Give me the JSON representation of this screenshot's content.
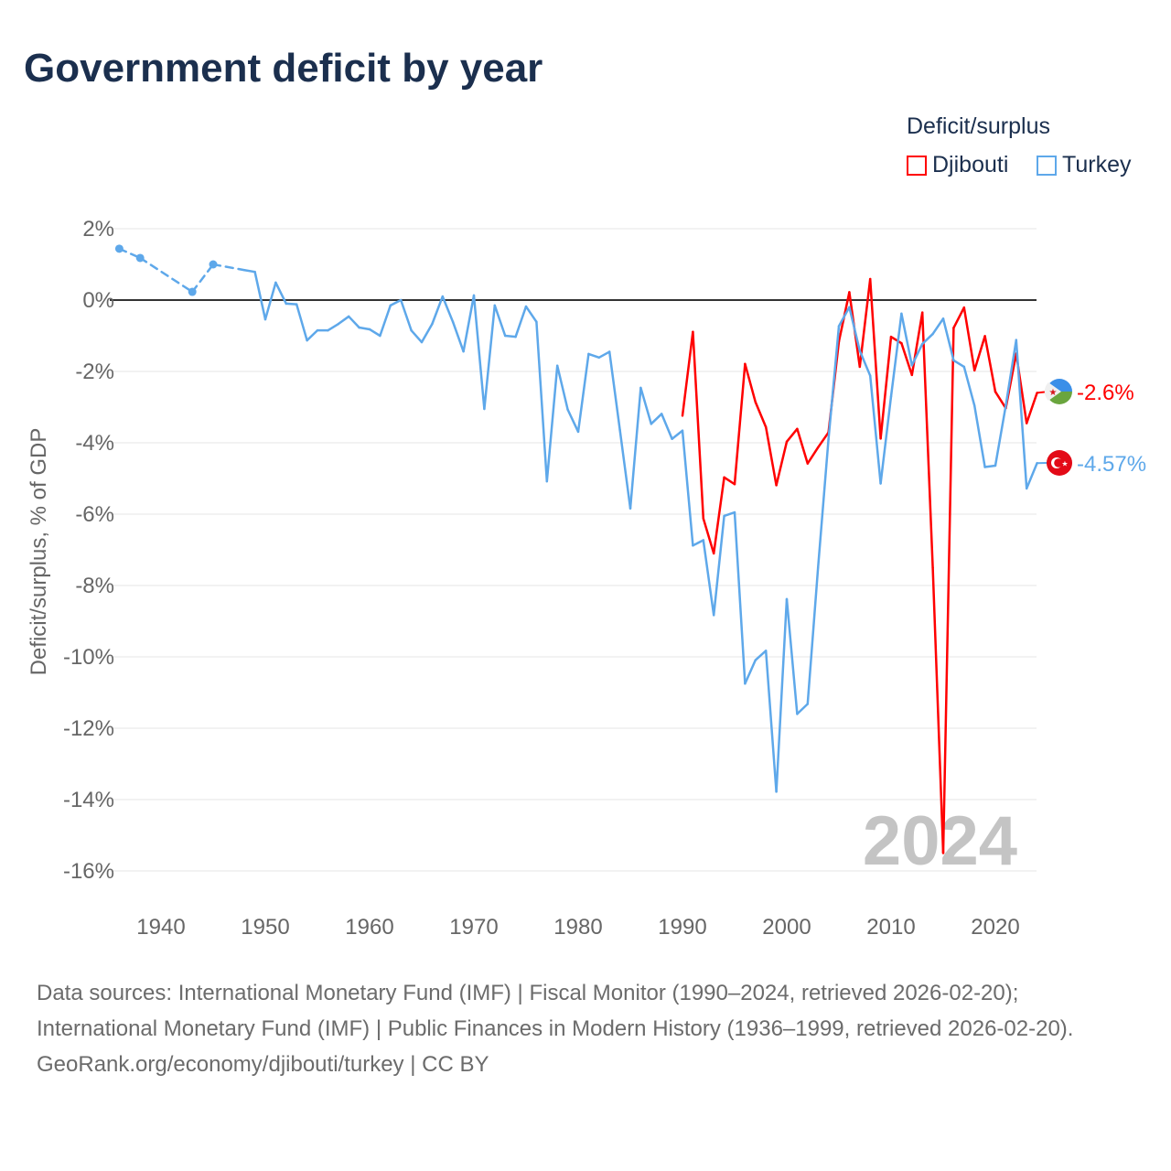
{
  "title": "Government deficit by year",
  "legend": {
    "title": "Deficit/surplus",
    "items": [
      "Djibouti",
      "Turkey"
    ]
  },
  "footer": {
    "line1": "Data sources: International Monetary Fund (IMF) | Fiscal Monitor (1990–2024, retrieved 2026-02-20); International Monetary Fund (IMF) | Public Finances in Modern History (1936–1999, retrieved 2026-02-20).",
    "line2": "GeoRank.org/economy/djibouti/turkey | CC BY"
  },
  "chart_data": {
    "type": "line",
    "title": "Government deficit by year",
    "ylabel": "Deficit/surplus, % of GDP",
    "xlabel": "",
    "ylim": [
      -17,
      2.5
    ],
    "xlim": [
      1935.5,
      2024.5
    ],
    "yticks": [
      2,
      0,
      -2,
      -4,
      -6,
      -8,
      -10,
      -12,
      -14,
      -16
    ],
    "ytick_labels": [
      "2%",
      "0%",
      "-2%",
      "-4%",
      "-6%",
      "-8%",
      "-10%",
      "-12%",
      "-14%",
      "-16%"
    ],
    "xticks": [
      1940,
      1950,
      1960,
      1970,
      1980,
      1990,
      2000,
      2010,
      2020
    ],
    "xtick_labels": [
      "1940",
      "1950",
      "1960",
      "1970",
      "1980",
      "1990",
      "2000",
      "2010",
      "2020"
    ],
    "watermark": "2024",
    "grid": true,
    "legend_position": "top-right",
    "series": [
      {
        "name": "Djibouti",
        "color": "#ff0000",
        "end_label": "-2.6%",
        "x": [
          1990,
          1991,
          1992,
          1993,
          1994,
          1995,
          1996,
          1997,
          1998,
          1999,
          2000,
          2001,
          2002,
          2003,
          2004,
          2005,
          2006,
          2007,
          2008,
          2009,
          2010,
          2011,
          2012,
          2013,
          2014,
          2015,
          2016,
          2017,
          2018,
          2019,
          2020,
          2021,
          2022,
          2023,
          2024
        ],
        "y": [
          -3.24,
          -0.89,
          -6.12,
          -7.1,
          -4.97,
          -5.16,
          -1.79,
          -2.86,
          -3.56,
          -5.19,
          -3.97,
          -3.61,
          -4.58,
          -4.13,
          -3.71,
          -1.16,
          0.22,
          -1.87,
          0.59,
          -3.88,
          -1.03,
          -1.21,
          -2.1,
          -0.35,
          -7.5,
          -15.5,
          -0.78,
          -0.21,
          -1.97,
          -1.01,
          -2.57,
          -3.03,
          -1.5,
          -3.45,
          -2.6
        ]
      },
      {
        "name": "Turkey",
        "color": "#5ea8ea",
        "end_label": "-4.57%",
        "x": [
          1936,
          1938,
          1943,
          1945,
          1948,
          1949,
          1950,
          1951,
          1952,
          1953,
          1954,
          1955,
          1956,
          1957,
          1958,
          1959,
          1960,
          1961,
          1962,
          1963,
          1964,
          1965,
          1966,
          1967,
          1968,
          1969,
          1970,
          1971,
          1972,
          1973,
          1974,
          1975,
          1976,
          1977,
          1978,
          1979,
          1980,
          1981,
          1982,
          1983,
          1984,
          1985,
          1986,
          1987,
          1988,
          1989,
          1990,
          1991,
          1992,
          1993,
          1994,
          1995,
          1996,
          1997,
          1998,
          1999,
          2000,
          2001,
          2002,
          2003,
          2004,
          2005,
          2006,
          2007,
          2008,
          2009,
          2010,
          2011,
          2012,
          2013,
          2014,
          2015,
          2016,
          2017,
          2018,
          2019,
          2020,
          2021,
          2022,
          2023,
          2024
        ],
        "y": [
          1.44,
          1.18,
          0.23,
          1.0,
          0.84,
          0.79,
          -0.54,
          0.49,
          -0.1,
          -0.12,
          -1.13,
          -0.85,
          -0.85,
          -0.67,
          -0.46,
          -0.77,
          -0.82,
          -1.0,
          -0.15,
          0.0,
          -0.85,
          -1.18,
          -0.67,
          0.1,
          -0.62,
          -1.44,
          0.13,
          -3.05,
          -0.15,
          -1.0,
          -1.03,
          -0.18,
          -0.61,
          -5.08,
          -1.84,
          -3.07,
          -3.69,
          -1.51,
          -1.61,
          -1.45,
          -3.64,
          -5.84,
          -2.46,
          -3.47,
          -3.19,
          -3.89,
          -3.66,
          -6.88,
          -6.73,
          -8.83,
          -6.05,
          -5.95,
          -10.75,
          -10.09,
          -9.83,
          -13.78,
          -8.38,
          -11.6,
          -11.32,
          -7.5,
          -3.9,
          -0.73,
          -0.2,
          -1.42,
          -2.12,
          -5.14,
          -2.7,
          -0.38,
          -1.83,
          -1.23,
          -0.95,
          -0.52,
          -1.69,
          -1.87,
          -2.96,
          -4.68,
          -4.64,
          -2.96,
          -1.12,
          -5.28,
          -4.57
        ]
      }
    ]
  }
}
